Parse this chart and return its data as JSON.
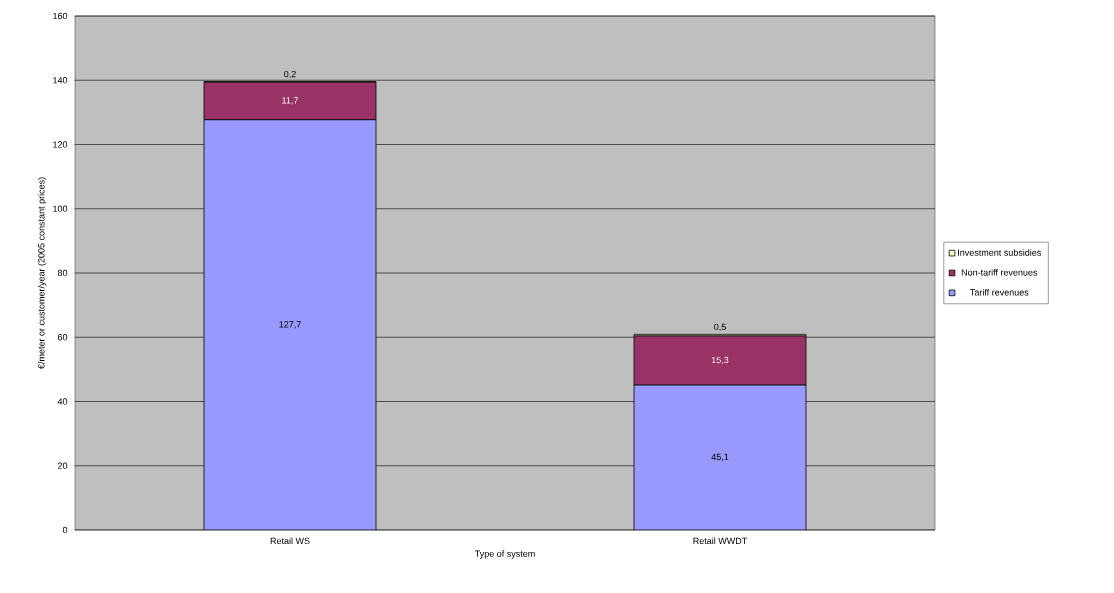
{
  "chart_data": {
    "type": "bar",
    "stacked": true,
    "xlabel": "Type of system",
    "ylabel": "€/meter or customer/year (2005 constant prices)",
    "categories": [
      "Retail WS",
      "Retail WWDT"
    ],
    "series": [
      {
        "name": "Tariff revenues",
        "color": "#9999ff",
        "values": [
          127.7,
          45.1
        ],
        "value_labels": [
          "127,7",
          "45,1"
        ]
      },
      {
        "name": "Non-tariff revenues",
        "color": "#993366",
        "values": [
          11.7,
          15.3
        ],
        "value_labels": [
          "11,7",
          "15,3"
        ]
      },
      {
        "name": "Investment subsidies",
        "color": "#ffffcc",
        "values": [
          0.2,
          0.5
        ],
        "value_labels": [
          "0,2",
          "0,5"
        ]
      }
    ],
    "ylim": [
      0,
      160
    ],
    "yticks": [
      0,
      20,
      40,
      60,
      80,
      100,
      120,
      140,
      160
    ],
    "grid": "y",
    "legend": "right"
  }
}
